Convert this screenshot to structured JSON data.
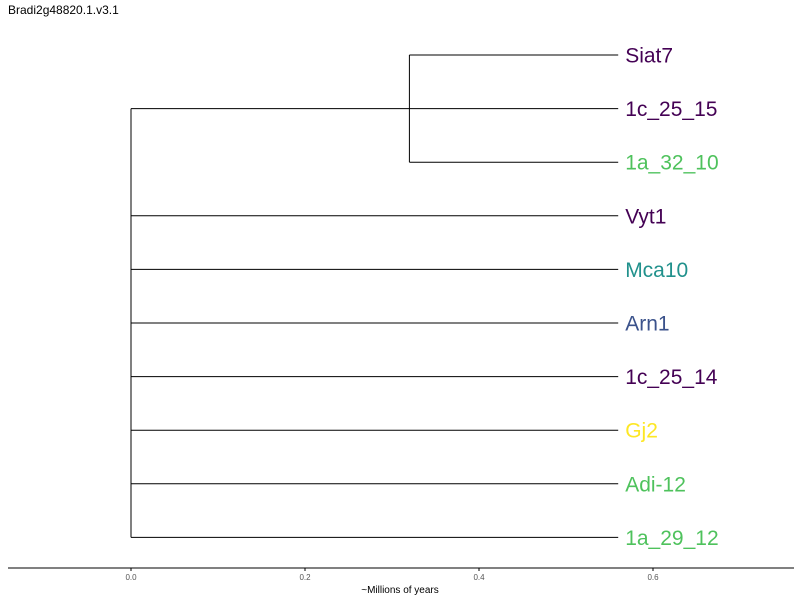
{
  "title": "Bradi2g48820.1.v3.1",
  "axis": {
    "label": "~Millions of years",
    "ticks": [
      0.0,
      0.2,
      0.4,
      0.6
    ],
    "tick_labels": [
      "0.0",
      "0.2",
      "0.4",
      "0.6"
    ]
  },
  "colors": {
    "dark_purple": "#440154",
    "green": "#4ec25c",
    "teal": "#21918c",
    "slate_blue": "#3b528b",
    "yellow": "#fde725"
  },
  "tree": {
    "tip_depth": 0.56,
    "root_depth": 0.0,
    "clades": [
      {
        "depth": 0.32,
        "leaves": [
          {
            "name": "Siat7",
            "color": "#440154"
          },
          {
            "name": "1a_32_10",
            "color": "#4ec25c"
          }
        ]
      }
    ],
    "leaves": [
      {
        "name": "Siat7",
        "color": "#440154"
      },
      {
        "name": "1c_25_15",
        "color": "#440154"
      },
      {
        "name": "1a_32_10",
        "color": "#4ec25c"
      },
      {
        "name": "Vyt1",
        "color": "#440154"
      },
      {
        "name": "Mca10",
        "color": "#21918c"
      },
      {
        "name": "Arn1",
        "color": "#3b528b"
      },
      {
        "name": "1c_25_14",
        "color": "#440154"
      },
      {
        "name": "Gj2",
        "color": "#fde725"
      },
      {
        "name": "Adi-12",
        "color": "#4ec25c"
      },
      {
        "name": "1a_29_12",
        "color": "#4ec25c"
      }
    ]
  }
}
